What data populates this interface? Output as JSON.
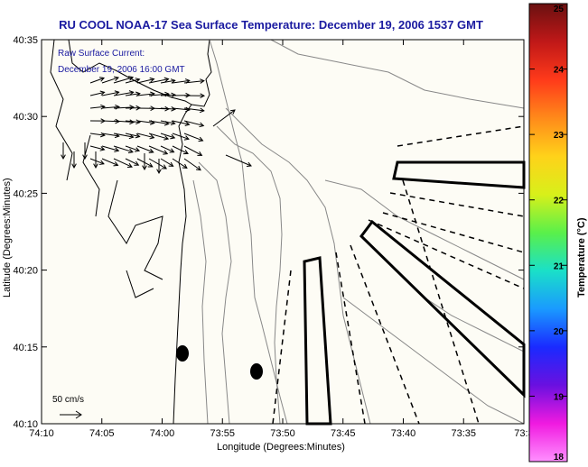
{
  "title": "RU COOL  NOAA-17  Sea Surface Temperature:  December 19, 2006 1537 GMT",
  "legend": {
    "line1": "Raw Surface Current:",
    "line2": "December 19, 2006 16:00 GMT",
    "scale_label": "50 cm/s"
  },
  "axes": {
    "xlabel": "Longitude (Degrees:Minutes)",
    "ylabel": "Latitude (Degrees:Minutes)",
    "x_ticks": [
      "74:10",
      "74:05",
      "74:00",
      "73:55",
      "73:50",
      "73:45",
      "73:40",
      "73:35",
      "73:3"
    ],
    "y_ticks": [
      "40:35",
      "40:30",
      "40:25",
      "40:20",
      "40:15",
      "40:10"
    ]
  },
  "colorbar": {
    "label": "Temperature (°C)",
    "ticks": [
      "25",
      "24",
      "23",
      "22",
      "21",
      "20",
      "19",
      "18"
    ],
    "colors": [
      "#6a1010",
      "#c01818",
      "#ff3a1a",
      "#ff8a1a",
      "#ffd21a",
      "#d8f01a",
      "#5af04a",
      "#1ae0c8",
      "#1a9aff",
      "#1a2aff",
      "#6a10e0",
      "#f01ae0",
      "#ff90ff"
    ]
  }
}
